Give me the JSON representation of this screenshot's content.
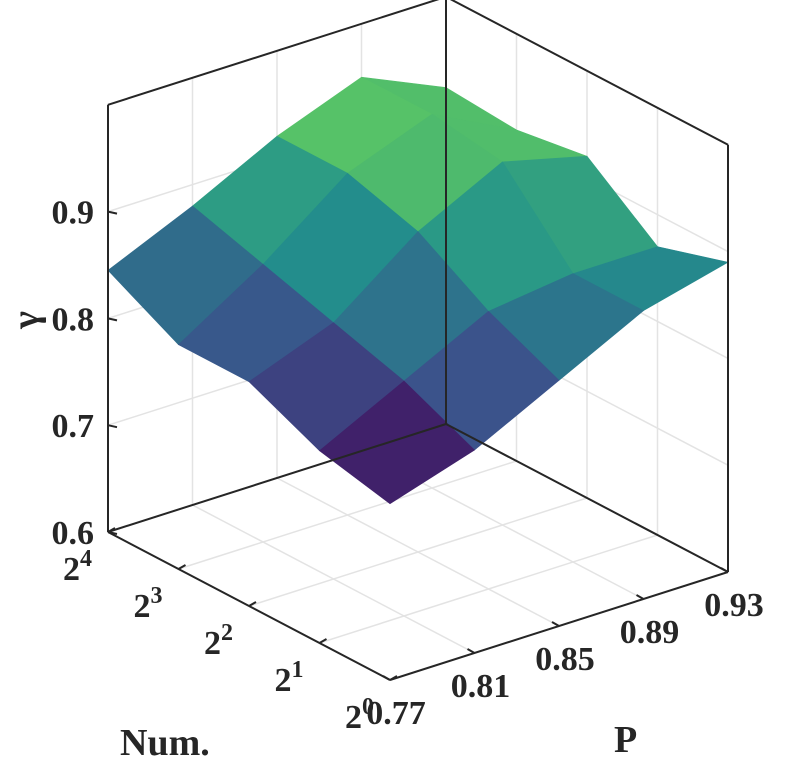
{
  "chart_data": {
    "type": "surface",
    "xlabel": "P",
    "ylabel": "Num.",
    "zlabel": "γ",
    "x_ticks": [
      "0.77",
      "0.81",
      "0.85",
      "0.89",
      "0.93"
    ],
    "y_ticks": [
      {
        "base": "2",
        "exp": "0"
      },
      {
        "base": "2",
        "exp": "1"
      },
      {
        "base": "2",
        "exp": "2"
      },
      {
        "base": "2",
        "exp": "3"
      },
      {
        "base": "2",
        "exp": "4"
      }
    ],
    "z_ticks": [
      "0.6",
      "0.7",
      "0.8",
      "0.9"
    ],
    "zlim": [
      0.6,
      1.0
    ],
    "grid": true,
    "colormap": [
      "#440154",
      "#3b528b",
      "#21918c",
      "#5ec962",
      "#fde725"
    ],
    "x": [
      0.77,
      0.81,
      0.85,
      0.89,
      0.93
    ],
    "y_exponents": [
      0,
      1,
      2,
      3,
      4
    ],
    "z": [
      [
        0.765,
        0.79,
        0.83,
        0.87,
        0.89
      ],
      [
        0.78,
        0.82,
        0.86,
        0.87,
        0.87
      ],
      [
        0.81,
        0.84,
        0.9,
        0.94,
        0.92
      ],
      [
        0.81,
        0.86,
        0.92,
        0.95,
        0.91
      ],
      [
        0.845,
        0.88,
        0.92,
        0.95,
        0.915
      ]
    ]
  }
}
